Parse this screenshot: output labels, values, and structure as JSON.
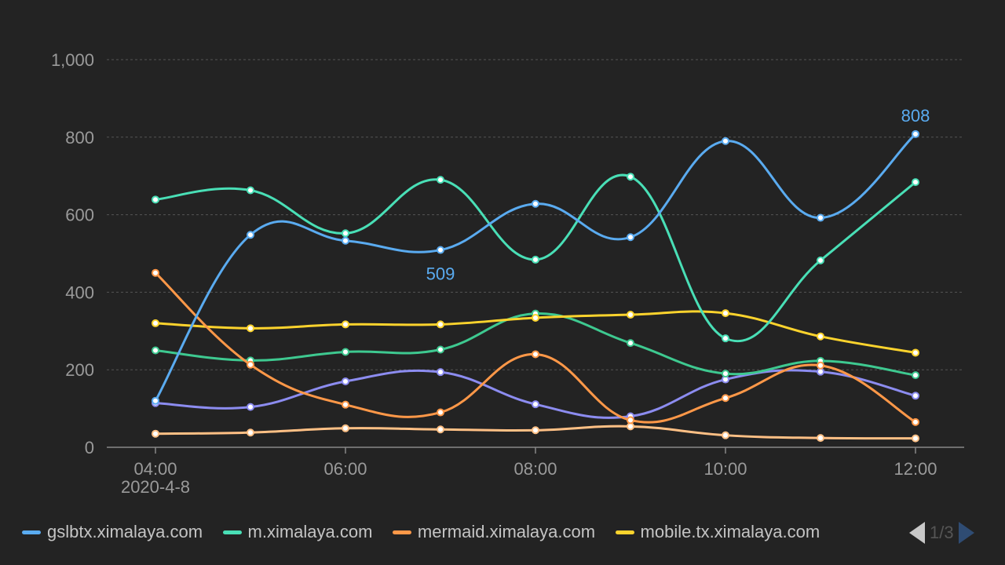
{
  "chart_data": {
    "type": "line",
    "x": [
      "04:00",
      "05:00",
      "06:00",
      "07:00",
      "08:00",
      "09:00",
      "10:00",
      "11:00",
      "12:00"
    ],
    "x_tick_labels": [
      "04:00",
      "06:00",
      "08:00",
      "10:00",
      "12:00"
    ],
    "x_date_label": "2020-4-8",
    "ylim": [
      0,
      1000
    ],
    "y_ticks": [
      "0",
      "200",
      "400",
      "600",
      "800",
      "1,000"
    ],
    "grid": true,
    "legend_position": "bottom",
    "series": [
      {
        "name": "gslbtx.ximalaya.com",
        "color": "#5aabf0",
        "values": [
          120,
          548,
          533,
          509,
          628,
          542,
          790,
          592,
          808
        ]
      },
      {
        "name": "m.ximalaya.com",
        "color": "#49dfb6",
        "values": [
          639,
          663,
          552,
          690,
          484,
          698,
          281,
          482,
          684
        ]
      },
      {
        "name": "mermaid.ximalaya.com",
        "color": "#ff9848",
        "values": [
          450,
          213,
          110,
          90,
          240,
          70,
          127,
          211,
          65
        ]
      },
      {
        "name": "mobile.tx.ximalaya.com",
        "color": "#fcd32d",
        "values": [
          320,
          307,
          317,
          317,
          334,
          342,
          346,
          286,
          244
        ]
      },
      {
        "name": "",
        "color": "#3ec990",
        "values": [
          250,
          224,
          246,
          252,
          345,
          269,
          190,
          223,
          186
        ]
      },
      {
        "name": "",
        "color": "#8c8cf0",
        "values": [
          114,
          104,
          170,
          194,
          111,
          80,
          175,
          195,
          133
        ]
      },
      {
        "name": "",
        "color": "#ffc085",
        "values": [
          35,
          38,
          49,
          46,
          44,
          54,
          31,
          24,
          23
        ]
      }
    ],
    "annotations": [
      {
        "series": 0,
        "index": 3,
        "text": "509"
      },
      {
        "series": 0,
        "index": 8,
        "text": "808"
      }
    ]
  },
  "legend": {
    "items": [
      {
        "label": "gslbtx.ximalaya.com",
        "color": "#5aabf0"
      },
      {
        "label": "m.ximalaya.com",
        "color": "#49dfb6"
      },
      {
        "label": "mermaid.ximalaya.com",
        "color": "#ff9848"
      },
      {
        "label": "mobile.tx.ximalaya.com",
        "color": "#fcd32d"
      }
    ],
    "page_indicator": "1/3"
  }
}
